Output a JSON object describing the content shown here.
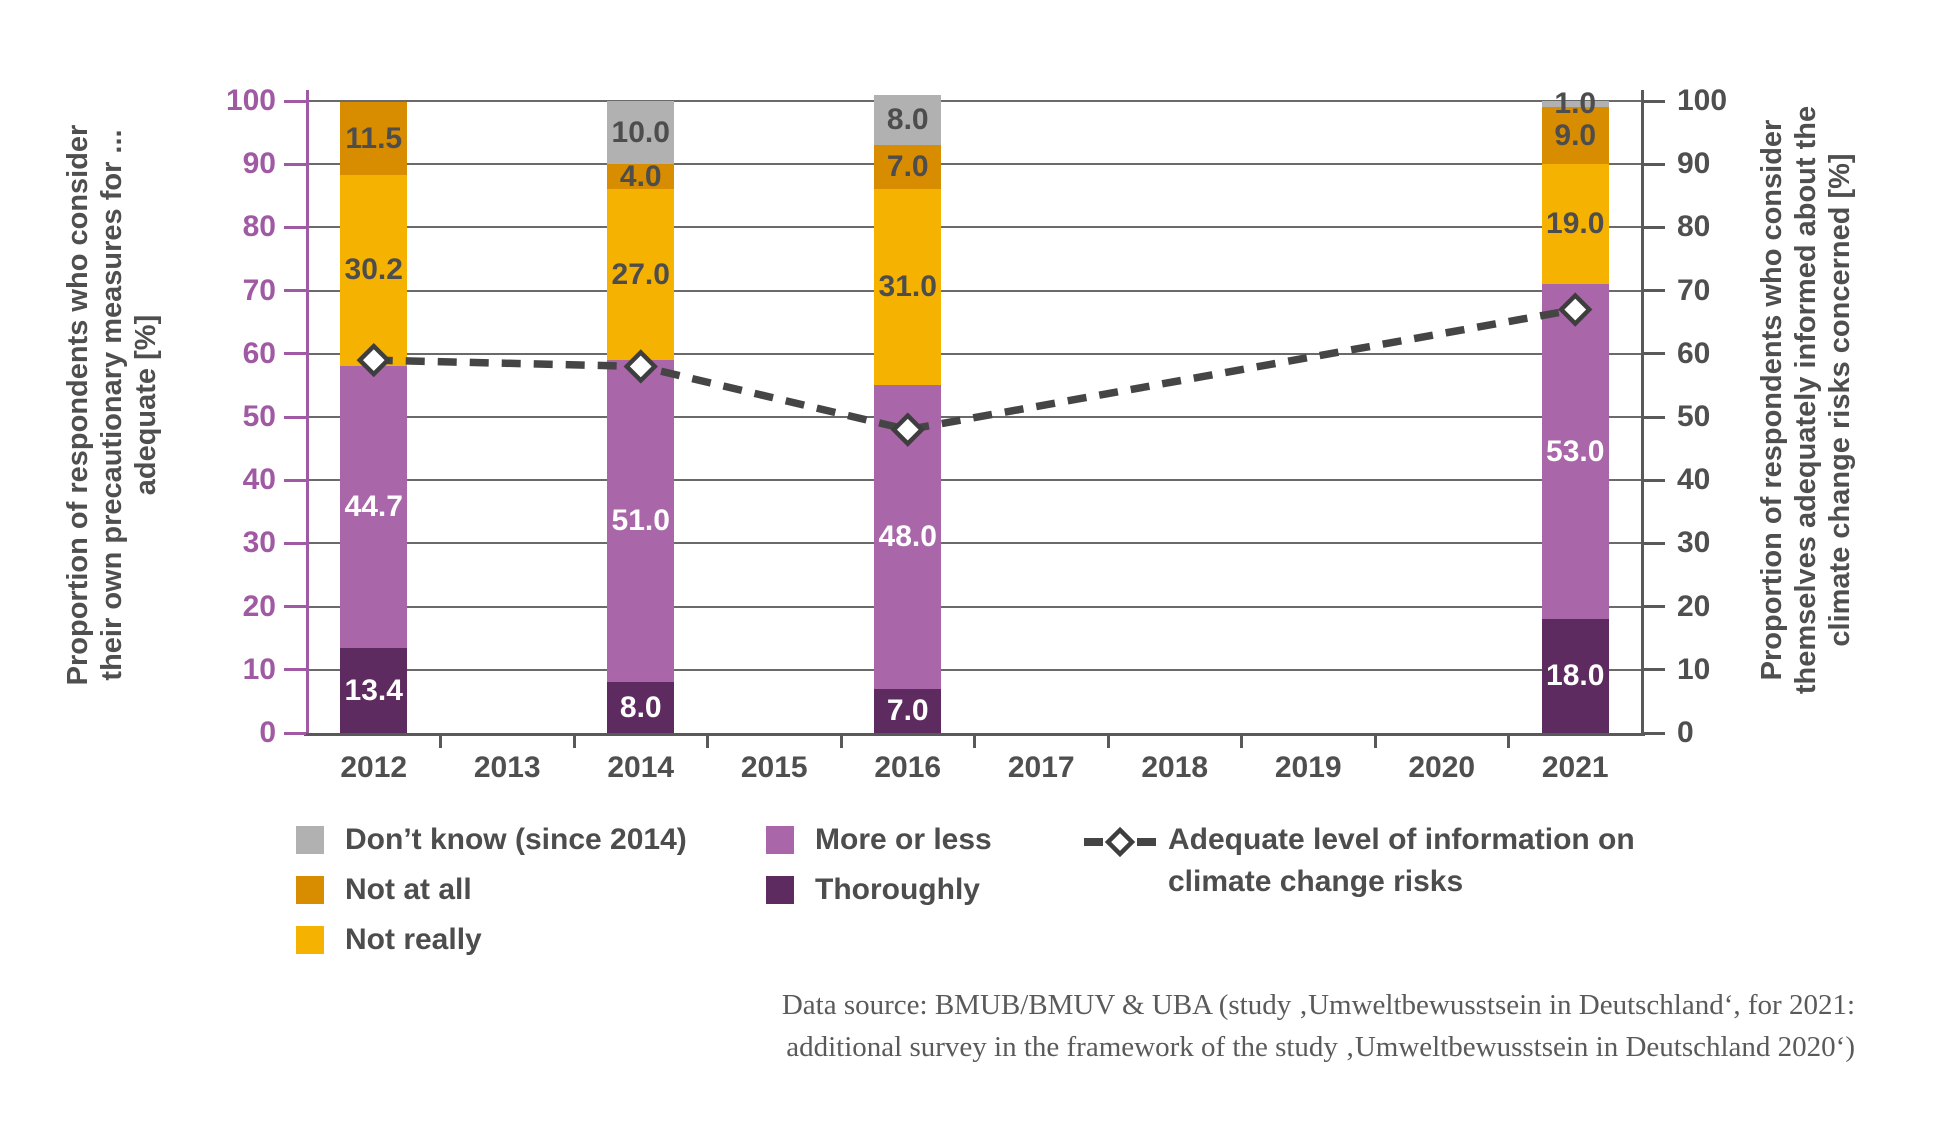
{
  "colors": {
    "thoroughly": "#5d2b60",
    "more_or_less": "#a966a8",
    "not_really": "#f6b200",
    "not_at_all": "#d88c00",
    "dont_know": "#b1b1b1",
    "axis_left_purple": "#a05aa3",
    "axis_gray": "#595959",
    "grid_gray": "#6a6a6a",
    "text_dark": "#4d4d4d",
    "line_dark": "#454545",
    "label_on_purple": "#ffffff"
  },
  "chart_data": {
    "type": "bar",
    "subtype": "stacked-bars-with-line-overlay",
    "title": "",
    "categories": [
      "2012",
      "2013",
      "2014",
      "2015",
      "2016",
      "2017",
      "2018",
      "2019",
      "2020",
      "2021"
    ],
    "left_axis": {
      "label_lines": [
        "Proportion of respondents who consider",
        "their own precautionary measures for ...",
        "adequate [%]"
      ],
      "ticks": [
        0,
        10,
        20,
        30,
        40,
        50,
        60,
        70,
        80,
        90,
        100
      ],
      "range": [
        0,
        100
      ]
    },
    "right_axis": {
      "label_lines": [
        "Proportion of respondents who consider",
        "themselves adequately informed about the",
        "climate change risks concerned [%]"
      ],
      "ticks": [
        0,
        10,
        20,
        30,
        40,
        50,
        60,
        70,
        80,
        90,
        100
      ],
      "range": [
        0,
        100
      ]
    },
    "grid": "horizontal",
    "stack_order": [
      "thoroughly",
      "more_or_less",
      "not_really",
      "not_at_all",
      "dont_know"
    ],
    "series_labels": {
      "thoroughly": "Thoroughly",
      "more_or_less": "More or less",
      "not_really": "Not really",
      "not_at_all": "Not at all",
      "dont_know": "Don’t know (since 2014)"
    },
    "bars": [
      {
        "category": "2012",
        "values": {
          "thoroughly": 13.4,
          "more_or_less": 44.7,
          "not_really": 30.2,
          "not_at_all": 11.5,
          "dont_know": null
        }
      },
      {
        "category": "2014",
        "values": {
          "thoroughly": 8.0,
          "more_or_less": 51.0,
          "not_really": 27.0,
          "not_at_all": 4.0,
          "dont_know": 10.0
        }
      },
      {
        "category": "2016",
        "values": {
          "thoroughly": 7.0,
          "more_or_less": 48.0,
          "not_really": 31.0,
          "not_at_all": 7.0,
          "dont_know": 8.0
        }
      },
      {
        "category": "2021",
        "values": {
          "thoroughly": 18.0,
          "more_or_less": 53.0,
          "not_really": 19.0,
          "not_at_all": 9.0,
          "dont_know": 1.0
        }
      }
    ],
    "line_series": {
      "name": "Adequate level of information on climate change risks",
      "points": [
        {
          "category": "2012",
          "value": 59
        },
        {
          "category": "2014",
          "value": 58
        },
        {
          "category": "2016",
          "value": 48
        },
        {
          "category": "2021",
          "value": 67
        }
      ]
    }
  },
  "legend": {
    "items": [
      {
        "key": "dont_know",
        "label": "Don’t know (since 2014)"
      },
      {
        "key": "not_at_all",
        "label": "Not at all"
      },
      {
        "key": "not_really",
        "label": "Not really"
      },
      {
        "key": "more_or_less",
        "label": "More or less"
      },
      {
        "key": "thoroughly",
        "label": "Thoroughly"
      },
      {
        "key": "line",
        "label_line1": "Adequate level of information on",
        "label_line2": "climate change risks"
      }
    ]
  },
  "footer": {
    "line1": "Data source: BMUB/BMUV & UBA (study ‚Umweltbewusstsein in Deutschland‘, for 2021:",
    "line2": "additional survey in the framework of the study ‚Umweltbewusstsein in Deutschland 2020‘)"
  }
}
